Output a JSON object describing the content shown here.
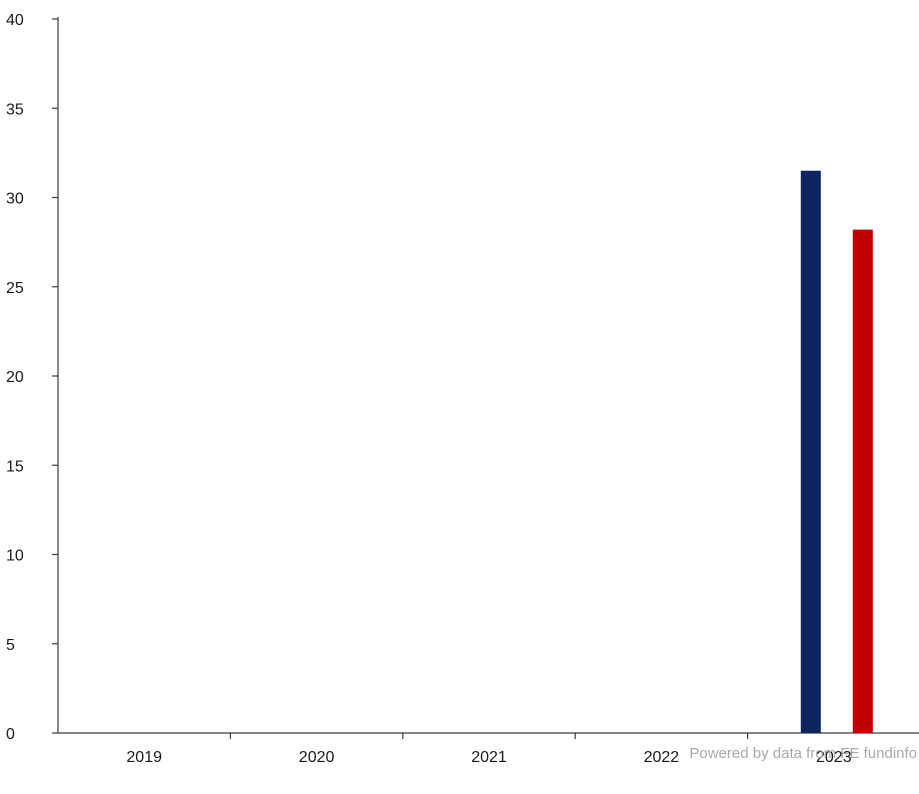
{
  "chart_data": {
    "type": "bar",
    "categories": [
      "2019",
      "2020",
      "2021",
      "2022",
      "2023"
    ],
    "series": [
      {
        "color": "#0d2460",
        "values": [
          null,
          null,
          null,
          null,
          31.5
        ]
      },
      {
        "color": "#c00000",
        "values": [
          null,
          null,
          null,
          null,
          28.2
        ]
      }
    ],
    "title": "",
    "xlabel": "",
    "ylabel": "",
    "ylim": [
      0,
      40
    ],
    "yticks": [
      0,
      5,
      10,
      15,
      20,
      25,
      30,
      35,
      40
    ],
    "grid": false,
    "legend": "none"
  },
  "footer": {
    "credit": "Powered by data from FE fundinfo"
  }
}
